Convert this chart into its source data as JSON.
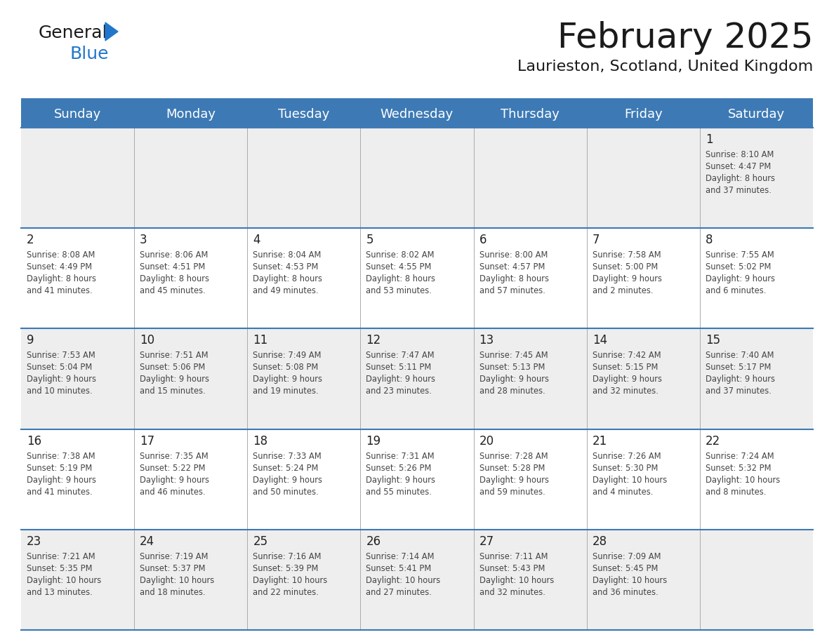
{
  "title": "February 2025",
  "subtitle": "Laurieston, Scotland, United Kingdom",
  "header_bg_color": "#3d7ab5",
  "header_text_color": "#ffffff",
  "cell_bg_color_light": "#eeeeee",
  "cell_bg_color_white": "#ffffff",
  "day_headers": [
    "Sunday",
    "Monday",
    "Tuesday",
    "Wednesday",
    "Thursday",
    "Friday",
    "Saturday"
  ],
  "bg_color": "#ffffff",
  "title_color": "#1a1a1a",
  "subtitle_color": "#1a1a1a",
  "cell_text_color": "#444444",
  "day_num_color": "#222222",
  "logo_general_color": "#1a1a1a",
  "logo_blue_color": "#2277cc",
  "border_color": "#3d7ab5",
  "divider_color": "#aaaaaa",
  "calendar_data": [
    [
      null,
      null,
      null,
      null,
      null,
      null,
      {
        "day": 1,
        "sunrise": "8:10 AM",
        "sunset": "4:47 PM",
        "daylight": "8 hours and 37 minutes."
      }
    ],
    [
      {
        "day": 2,
        "sunrise": "8:08 AM",
        "sunset": "4:49 PM",
        "daylight": "8 hours and 41 minutes."
      },
      {
        "day": 3,
        "sunrise": "8:06 AM",
        "sunset": "4:51 PM",
        "daylight": "8 hours and 45 minutes."
      },
      {
        "day": 4,
        "sunrise": "8:04 AM",
        "sunset": "4:53 PM",
        "daylight": "8 hours and 49 minutes."
      },
      {
        "day": 5,
        "sunrise": "8:02 AM",
        "sunset": "4:55 PM",
        "daylight": "8 hours and 53 minutes."
      },
      {
        "day": 6,
        "sunrise": "8:00 AM",
        "sunset": "4:57 PM",
        "daylight": "8 hours and 57 minutes."
      },
      {
        "day": 7,
        "sunrise": "7:58 AM",
        "sunset": "5:00 PM",
        "daylight": "9 hours and 2 minutes."
      },
      {
        "day": 8,
        "sunrise": "7:55 AM",
        "sunset": "5:02 PM",
        "daylight": "9 hours and 6 minutes."
      }
    ],
    [
      {
        "day": 9,
        "sunrise": "7:53 AM",
        "sunset": "5:04 PM",
        "daylight": "9 hours and 10 minutes."
      },
      {
        "day": 10,
        "sunrise": "7:51 AM",
        "sunset": "5:06 PM",
        "daylight": "9 hours and 15 minutes."
      },
      {
        "day": 11,
        "sunrise": "7:49 AM",
        "sunset": "5:08 PM",
        "daylight": "9 hours and 19 minutes."
      },
      {
        "day": 12,
        "sunrise": "7:47 AM",
        "sunset": "5:11 PM",
        "daylight": "9 hours and 23 minutes."
      },
      {
        "day": 13,
        "sunrise": "7:45 AM",
        "sunset": "5:13 PM",
        "daylight": "9 hours and 28 minutes."
      },
      {
        "day": 14,
        "sunrise": "7:42 AM",
        "sunset": "5:15 PM",
        "daylight": "9 hours and 32 minutes."
      },
      {
        "day": 15,
        "sunrise": "7:40 AM",
        "sunset": "5:17 PM",
        "daylight": "9 hours and 37 minutes."
      }
    ],
    [
      {
        "day": 16,
        "sunrise": "7:38 AM",
        "sunset": "5:19 PM",
        "daylight": "9 hours and 41 minutes."
      },
      {
        "day": 17,
        "sunrise": "7:35 AM",
        "sunset": "5:22 PM",
        "daylight": "9 hours and 46 minutes."
      },
      {
        "day": 18,
        "sunrise": "7:33 AM",
        "sunset": "5:24 PM",
        "daylight": "9 hours and 50 minutes."
      },
      {
        "day": 19,
        "sunrise": "7:31 AM",
        "sunset": "5:26 PM",
        "daylight": "9 hours and 55 minutes."
      },
      {
        "day": 20,
        "sunrise": "7:28 AM",
        "sunset": "5:28 PM",
        "daylight": "9 hours and 59 minutes."
      },
      {
        "day": 21,
        "sunrise": "7:26 AM",
        "sunset": "5:30 PM",
        "daylight": "10 hours and 4 minutes."
      },
      {
        "day": 22,
        "sunrise": "7:24 AM",
        "sunset": "5:32 PM",
        "daylight": "10 hours and 8 minutes."
      }
    ],
    [
      {
        "day": 23,
        "sunrise": "7:21 AM",
        "sunset": "5:35 PM",
        "daylight": "10 hours and 13 minutes."
      },
      {
        "day": 24,
        "sunrise": "7:19 AM",
        "sunset": "5:37 PM",
        "daylight": "10 hours and 18 minutes."
      },
      {
        "day": 25,
        "sunrise": "7:16 AM",
        "sunset": "5:39 PM",
        "daylight": "10 hours and 22 minutes."
      },
      {
        "day": 26,
        "sunrise": "7:14 AM",
        "sunset": "5:41 PM",
        "daylight": "10 hours and 27 minutes."
      },
      {
        "day": 27,
        "sunrise": "7:11 AM",
        "sunset": "5:43 PM",
        "daylight": "10 hours and 32 minutes."
      },
      {
        "day": 28,
        "sunrise": "7:09 AM",
        "sunset": "5:45 PM",
        "daylight": "10 hours and 36 minutes."
      },
      null
    ]
  ]
}
